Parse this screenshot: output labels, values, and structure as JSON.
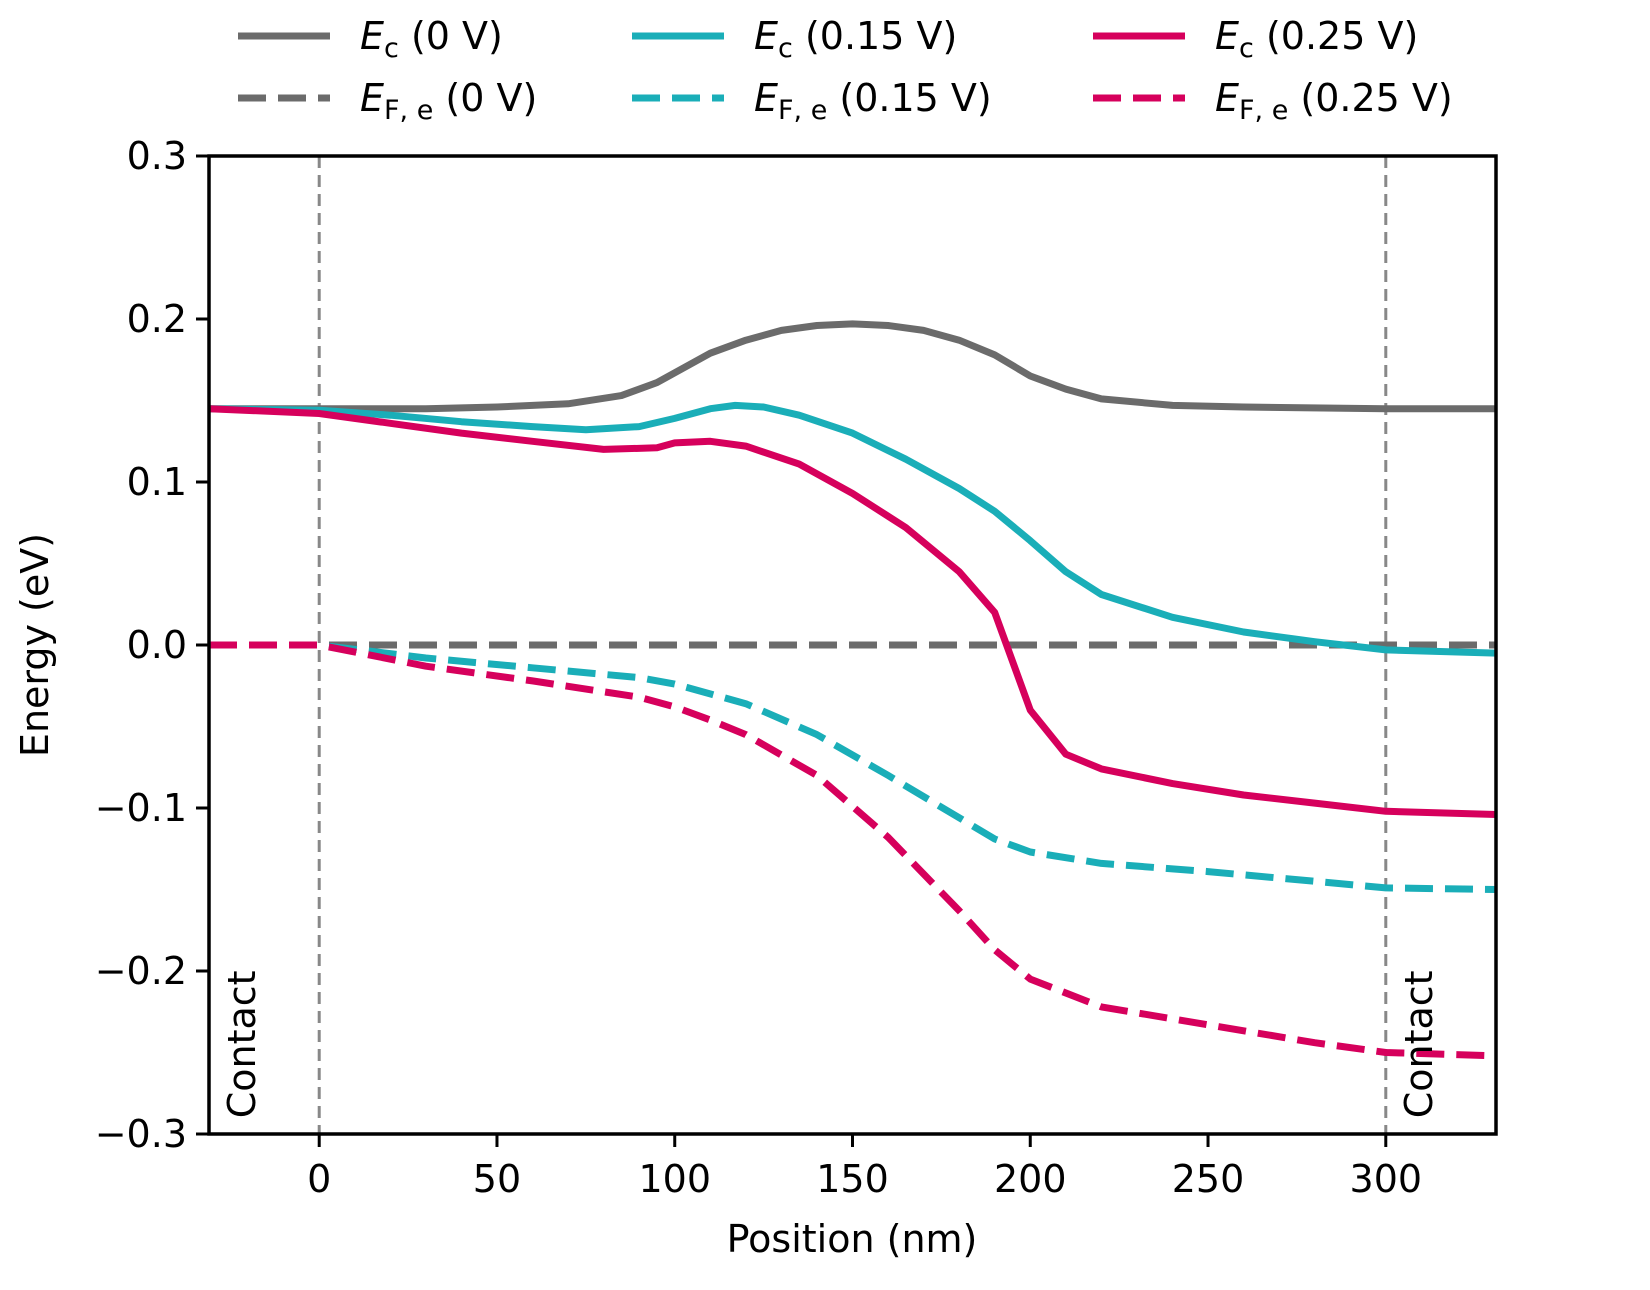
{
  "chart_data": {
    "type": "line",
    "xlabel": "Position (nm)",
    "ylabel": "Energy (eV)",
    "xlim": [
      -31,
      331
    ],
    "ylim": [
      -0.3,
      0.3
    ],
    "xticks": [
      0,
      50,
      100,
      150,
      200,
      250,
      300
    ],
    "xtick_labels": [
      "0",
      "50",
      "100",
      "150",
      "200",
      "250",
      "300"
    ],
    "yticks": [
      0.3,
      0.2,
      0.1,
      0.0,
      -0.1,
      -0.2,
      -0.3
    ],
    "ytick_labels": [
      "0.3",
      "0.2",
      "0.1",
      "0.0",
      "−0.1",
      "−0.2",
      "−0.3"
    ],
    "grid": false,
    "legend_position": "top-outside",
    "vertical_lines": [
      {
        "x": 0,
        "style": "dashed",
        "color": "#888888"
      },
      {
        "x": 300,
        "style": "dashed",
        "color": "#888888"
      }
    ],
    "annotations": [
      {
        "text": "Contact",
        "x": -18,
        "y": -0.245,
        "rotation": -90
      },
      {
        "text": "Contact",
        "x": 313,
        "y": -0.245,
        "rotation": -90
      }
    ],
    "series": [
      {
        "name": "E_c (0 V)",
        "legend_symbol": "E",
        "legend_sub": "c",
        "legend_suffix": " (0 V)",
        "color": "#6b6b6b",
        "dash": "solid",
        "x": [
          -31,
          0,
          30,
          50,
          70,
          85,
          95,
          100,
          110,
          120,
          130,
          140,
          150,
          160,
          170,
          180,
          190,
          200,
          210,
          220,
          240,
          260,
          300,
          331
        ],
        "y": [
          0.145,
          0.145,
          0.145,
          0.146,
          0.148,
          0.153,
          0.161,
          0.167,
          0.179,
          0.187,
          0.193,
          0.196,
          0.197,
          0.196,
          0.193,
          0.187,
          0.178,
          0.165,
          0.157,
          0.151,
          0.147,
          0.146,
          0.145,
          0.145
        ]
      },
      {
        "name": "E_F,e (0 V)",
        "legend_symbol": "E",
        "legend_sub": "F, e",
        "legend_suffix": " (0 V)",
        "color": "#6b6b6b",
        "dash": "dashed",
        "x": [
          -31,
          0,
          100,
          200,
          300,
          331
        ],
        "y": [
          0.0,
          0.0,
          0.0,
          0.0,
          0.0,
          0.0
        ]
      },
      {
        "name": "E_c (0.15 V)",
        "legend_symbol": "E",
        "legend_sub": "c",
        "legend_suffix": " (0.15 V)",
        "color": "#1aaeb8",
        "dash": "solid",
        "x": [
          -31,
          0,
          20,
          40,
          60,
          75,
          90,
          100,
          110,
          117,
          125,
          135,
          150,
          165,
          180,
          190,
          200,
          210,
          220,
          240,
          260,
          280,
          300,
          331
        ],
        "y": [
          0.145,
          0.144,
          0.141,
          0.137,
          0.134,
          0.132,
          0.134,
          0.139,
          0.145,
          0.147,
          0.146,
          0.141,
          0.13,
          0.114,
          0.096,
          0.082,
          0.064,
          0.045,
          0.031,
          0.017,
          0.008,
          0.002,
          -0.003,
          -0.005
        ]
      },
      {
        "name": "E_F,e (0.15 V)",
        "legend_symbol": "E",
        "legend_sub": "F, e",
        "legend_suffix": " (0.15 V)",
        "color": "#1aaeb8",
        "dash": "dashed",
        "x": [
          -31,
          0,
          30,
          60,
          90,
          100,
          120,
          140,
          160,
          180,
          190,
          200,
          220,
          250,
          280,
          300,
          331
        ],
        "y": [
          0.0,
          0.0,
          -0.008,
          -0.014,
          -0.02,
          -0.024,
          -0.036,
          -0.055,
          -0.08,
          -0.106,
          -0.119,
          -0.127,
          -0.134,
          -0.139,
          -0.145,
          -0.149,
          -0.15
        ]
      },
      {
        "name": "E_c (0.25 V)",
        "legend_symbol": "E",
        "legend_sub": "c",
        "legend_suffix": " (0.25 V)",
        "color": "#d6005c",
        "dash": "solid",
        "x": [
          -31,
          0,
          20,
          40,
          60,
          80,
          95,
          100,
          110,
          120,
          135,
          150,
          165,
          180,
          190,
          200,
          210,
          220,
          240,
          260,
          280,
          300,
          331
        ],
        "y": [
          0.145,
          0.142,
          0.136,
          0.13,
          0.125,
          0.12,
          0.121,
          0.124,
          0.125,
          0.122,
          0.111,
          0.093,
          0.072,
          0.045,
          0.02,
          -0.04,
          -0.067,
          -0.076,
          -0.085,
          -0.092,
          -0.097,
          -0.102,
          -0.104
        ]
      },
      {
        "name": "E_F,e (0.25 V)",
        "legend_symbol": "E",
        "legend_sub": "F, e",
        "legend_suffix": " (0.25 V)",
        "color": "#d6005c",
        "dash": "dashed",
        "x": [
          -31,
          0,
          30,
          60,
          90,
          100,
          110,
          120,
          140,
          160,
          180,
          190,
          200,
          220,
          250,
          280,
          300,
          331
        ],
        "y": [
          0.0,
          0.0,
          -0.013,
          -0.022,
          -0.032,
          -0.038,
          -0.046,
          -0.055,
          -0.08,
          -0.118,
          -0.163,
          -0.187,
          -0.205,
          -0.222,
          -0.233,
          -0.244,
          -0.25,
          -0.252
        ]
      }
    ]
  }
}
